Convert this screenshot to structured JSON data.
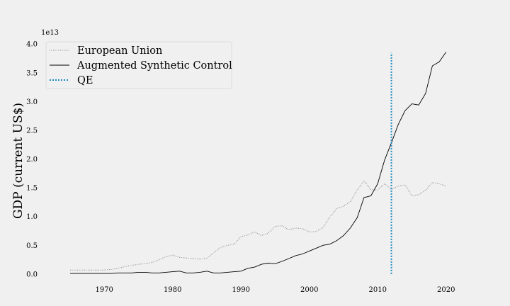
{
  "chart_data": {
    "type": "line",
    "title": "",
    "xlabel": "",
    "ylabel": "GDP (current US$)",
    "y_offset_label": "1e13",
    "y_scale_factor": 10000000000000.0,
    "xlim": [
      1962,
      2025
    ],
    "ylim": [
      -0.1,
      4.15
    ],
    "x_ticks": [
      1970,
      1980,
      1990,
      2000,
      2010,
      2020
    ],
    "y_ticks": [
      0.0,
      0.5,
      1.0,
      1.5,
      2.0,
      2.5,
      3.0,
      3.5,
      4.0
    ],
    "y_tick_labels": [
      "0.0",
      "0.5",
      "1.0",
      "1.5",
      "2.0",
      "2.5",
      "3.0",
      "3.5",
      "4.0"
    ],
    "grid": false,
    "legend_position": "top-left",
    "series": [
      {
        "name": "European Union",
        "style": "dotted",
        "color": "#888888",
        "x": [
          1965,
          1966,
          1967,
          1968,
          1969,
          1970,
          1971,
          1972,
          1973,
          1974,
          1975,
          1976,
          1977,
          1978,
          1979,
          1980,
          1981,
          1982,
          1983,
          1984,
          1985,
          1986,
          1987,
          1988,
          1989,
          1990,
          1991,
          1992,
          1993,
          1994,
          1995,
          1996,
          1997,
          1998,
          1999,
          2000,
          2001,
          2002,
          2003,
          2004,
          2005,
          2006,
          2007,
          2008,
          2009,
          2010,
          2011,
          2012,
          2013,
          2014,
          2015,
          2016,
          2017,
          2018,
          2019,
          2020
        ],
        "values": [
          0.07,
          0.07,
          0.07,
          0.07,
          0.07,
          0.07,
          0.08,
          0.1,
          0.13,
          0.15,
          0.17,
          0.18,
          0.2,
          0.25,
          0.3,
          0.33,
          0.29,
          0.28,
          0.27,
          0.26,
          0.27,
          0.37,
          0.46,
          0.5,
          0.52,
          0.65,
          0.68,
          0.73,
          0.67,
          0.71,
          0.83,
          0.84,
          0.77,
          0.8,
          0.79,
          0.73,
          0.74,
          0.81,
          0.99,
          1.14,
          1.18,
          1.26,
          1.46,
          1.62,
          1.47,
          1.46,
          1.57,
          1.47,
          1.53,
          1.55,
          1.36,
          1.38,
          1.46,
          1.59,
          1.57,
          1.53
        ]
      },
      {
        "name": "Augmented Synthetic Control",
        "style": "solid",
        "color": "#000000",
        "x": [
          1965,
          1966,
          1967,
          1968,
          1969,
          1970,
          1971,
          1972,
          1973,
          1974,
          1975,
          1976,
          1977,
          1978,
          1979,
          1980,
          1981,
          1982,
          1983,
          1984,
          1985,
          1986,
          1987,
          1988,
          1989,
          1990,
          1991,
          1992,
          1993,
          1994,
          1995,
          1996,
          1997,
          1998,
          1999,
          2000,
          2001,
          2002,
          2003,
          2004,
          2005,
          2006,
          2007,
          2008,
          2009,
          2010,
          2011,
          2012,
          2013,
          2014,
          2015,
          2016,
          2017,
          2018,
          2019,
          2020
        ],
        "values": [
          0.01,
          0.01,
          0.01,
          0.01,
          0.01,
          0.01,
          0.01,
          0.02,
          0.02,
          0.02,
          0.03,
          0.03,
          0.02,
          0.02,
          0.03,
          0.04,
          0.05,
          0.02,
          0.02,
          0.03,
          0.05,
          0.02,
          0.02,
          0.03,
          0.04,
          0.05,
          0.1,
          0.12,
          0.17,
          0.19,
          0.18,
          0.22,
          0.27,
          0.32,
          0.35,
          0.4,
          0.45,
          0.5,
          0.52,
          0.58,
          0.67,
          0.8,
          0.98,
          1.33,
          1.36,
          1.57,
          1.98,
          2.28,
          2.6,
          2.84,
          2.96,
          2.94,
          3.14,
          3.62,
          3.69,
          3.86
        ]
      }
    ],
    "vlines": [
      {
        "name": "QE",
        "x": 2012,
        "style": "dotted",
        "color": "#1f8bc0",
        "ymax": 3.85
      }
    ]
  }
}
